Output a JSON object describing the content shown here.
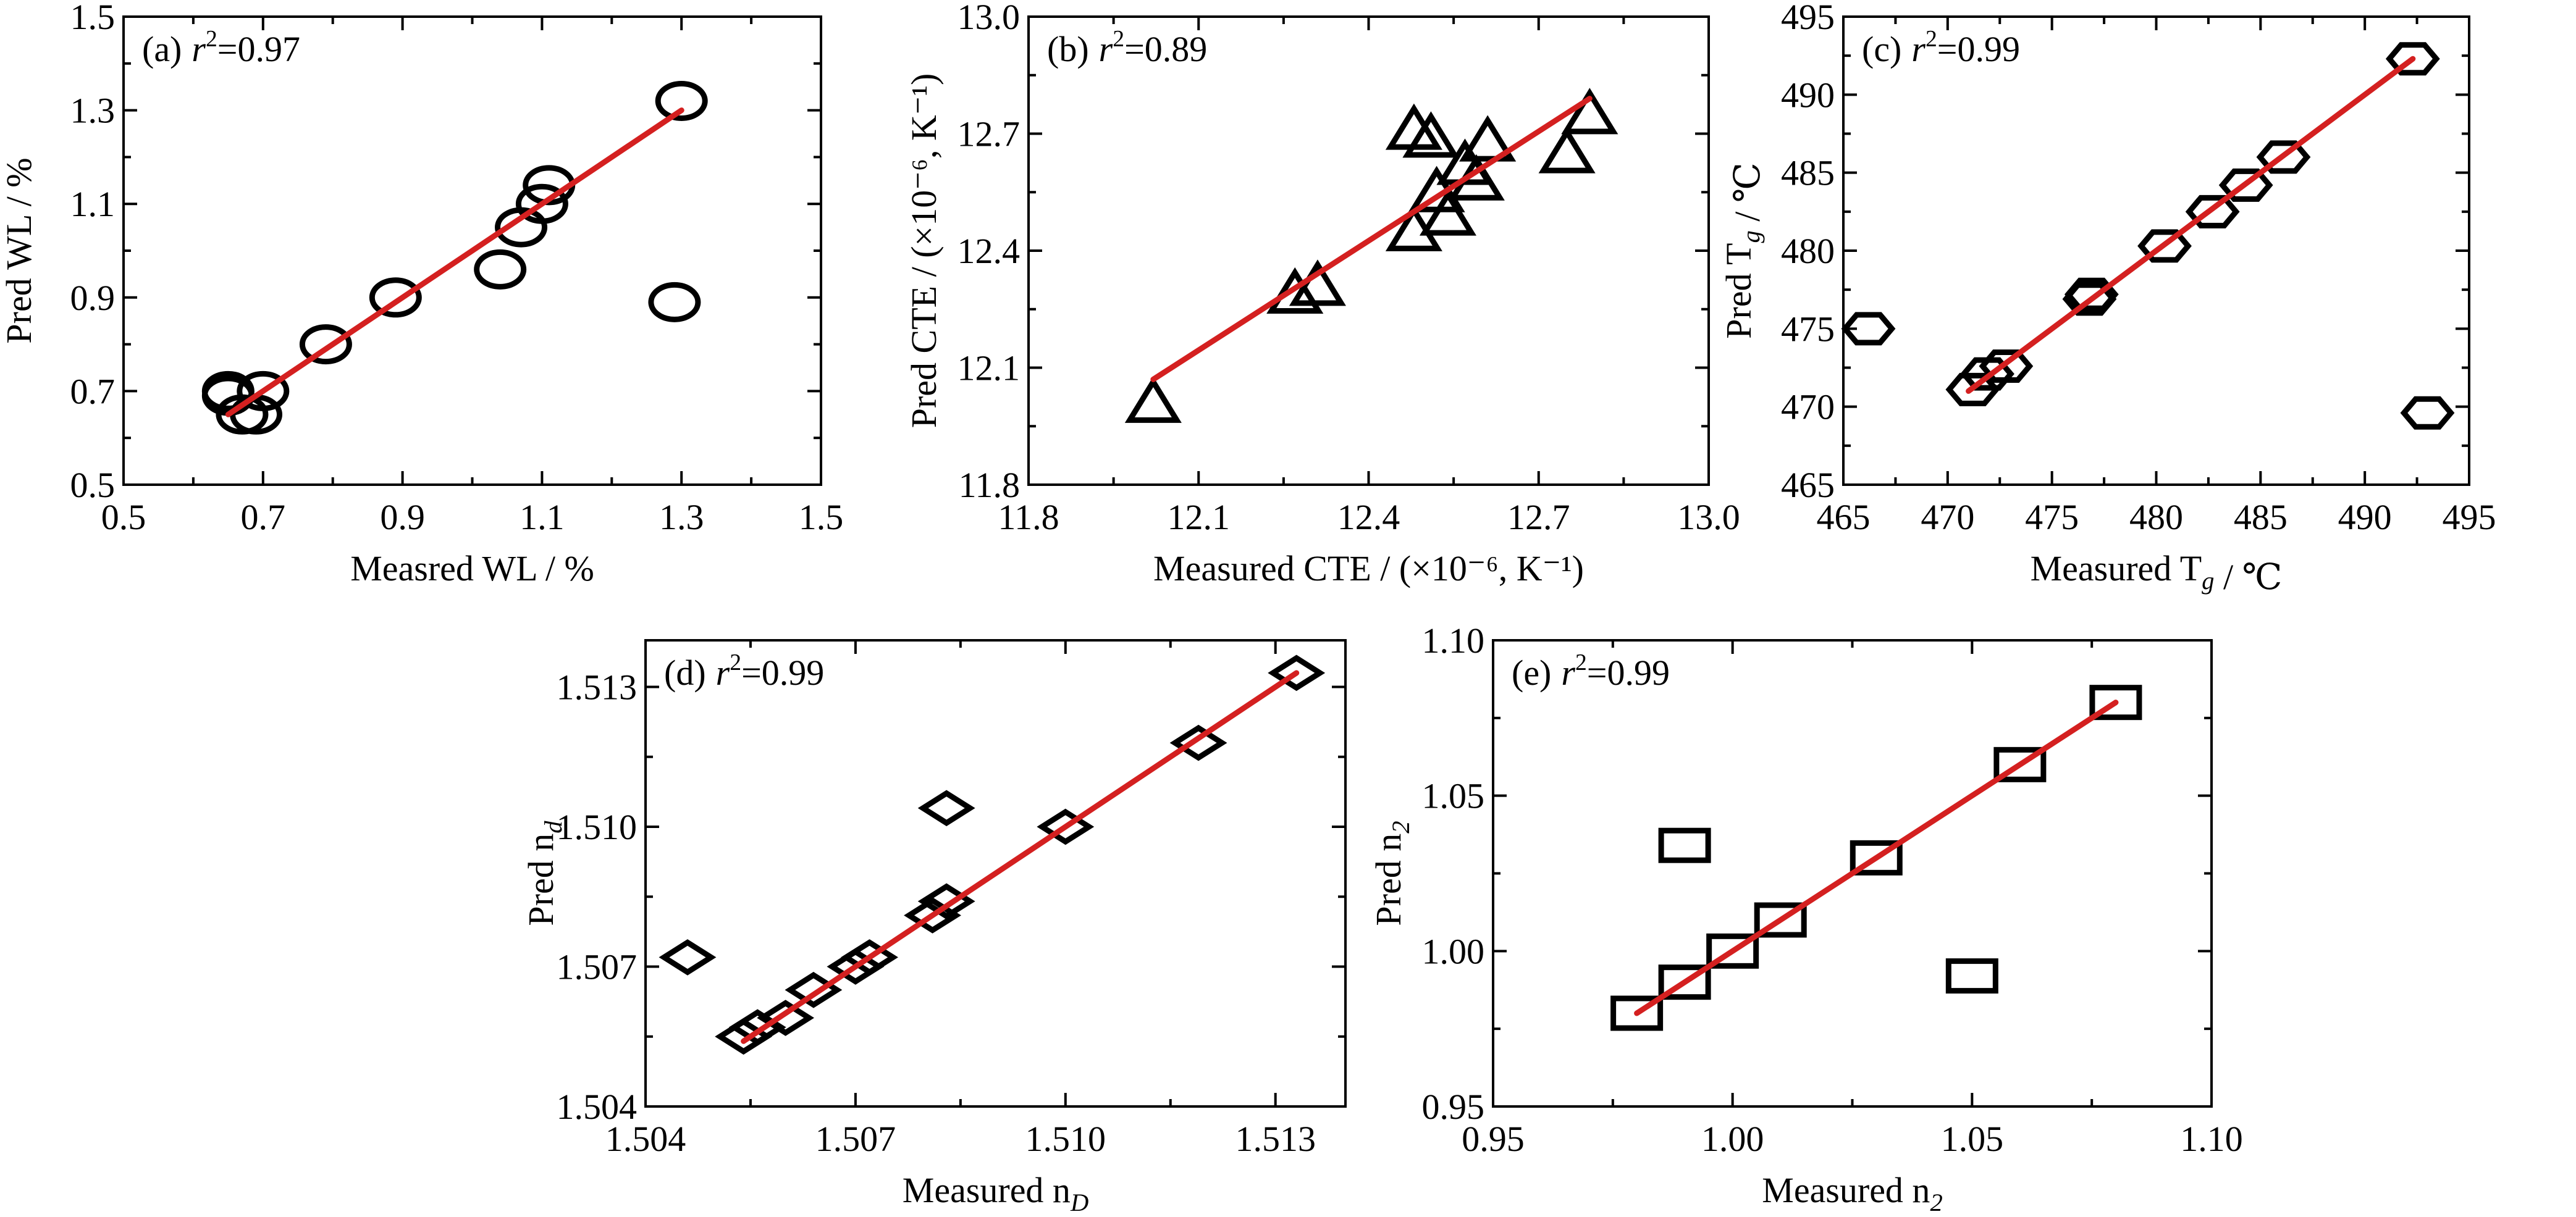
{
  "figure": {
    "line_color": "#d42020",
    "marker_color": "#000000"
  },
  "chart_data": [
    {
      "id": "a",
      "type": "scatter",
      "marker": "circle",
      "panel_label": "(a)",
      "r2_value": "=0.97",
      "xlabel": "Measred WL / %",
      "ylabel": "Pred WL / %",
      "xlim": [
        0.5,
        1.5
      ],
      "ylim": [
        0.5,
        1.5
      ],
      "xticks": [
        0.5,
        0.7,
        0.9,
        1.1,
        1.3,
        1.5
      ],
      "yticks": [
        0.5,
        0.7,
        0.9,
        1.1,
        1.3,
        1.5
      ],
      "xtick_labels": [
        "0.5",
        "0.7",
        "0.9",
        "1.1",
        "1.3",
        "1.5"
      ],
      "ytick_labels": [
        "0.5",
        "0.7",
        "0.9",
        "1.1",
        "1.3",
        "1.5"
      ],
      "minor_ticks": true,
      "grid": false,
      "points": [
        {
          "x": 0.65,
          "y": 0.69
        },
        {
          "x": 0.65,
          "y": 0.7
        },
        {
          "x": 0.67,
          "y": 0.65
        },
        {
          "x": 0.69,
          "y": 0.65
        },
        {
          "x": 0.7,
          "y": 0.7
        },
        {
          "x": 0.79,
          "y": 0.8
        },
        {
          "x": 0.89,
          "y": 0.9
        },
        {
          "x": 1.04,
          "y": 0.96
        },
        {
          "x": 1.07,
          "y": 1.05
        },
        {
          "x": 1.1,
          "y": 1.1
        },
        {
          "x": 1.11,
          "y": 1.14
        },
        {
          "x": 1.3,
          "y": 1.32
        },
        {
          "x": 1.29,
          "y": 0.89
        }
      ],
      "fit_line": {
        "x": [
          0.65,
          1.3
        ],
        "y": [
          0.65,
          1.3
        ]
      }
    },
    {
      "id": "b",
      "type": "scatter",
      "marker": "triangle",
      "panel_label": "(b)",
      "r2_value": "=0.89",
      "xlabel": "Measured CTE / (×10⁻⁶, K⁻¹)",
      "ylabel": "Pred CTE / (×10⁻⁶, K⁻¹)",
      "xlim": [
        11.8,
        13.0
      ],
      "ylim": [
        11.8,
        13.0
      ],
      "xticks": [
        11.8,
        12.1,
        12.4,
        12.7,
        13.0
      ],
      "yticks": [
        11.8,
        12.1,
        12.4,
        12.7,
        13.0
      ],
      "xtick_labels": [
        "11.8",
        "12.1",
        "12.4",
        "12.7",
        "13.0"
      ],
      "ytick_labels": [
        "11.8",
        "12.1",
        "12.4",
        "12.7",
        "13.0"
      ],
      "minor_ticks": true,
      "grid": false,
      "points": [
        {
          "x": 12.02,
          "y": 12.01
        },
        {
          "x": 12.27,
          "y": 12.29
        },
        {
          "x": 12.31,
          "y": 12.31
        },
        {
          "x": 12.48,
          "y": 12.45
        },
        {
          "x": 12.48,
          "y": 12.71
        },
        {
          "x": 12.51,
          "y": 12.69
        },
        {
          "x": 12.52,
          "y": 12.55
        },
        {
          "x": 12.54,
          "y": 12.49
        },
        {
          "x": 12.57,
          "y": 12.62
        },
        {
          "x": 12.59,
          "y": 12.58
        },
        {
          "x": 12.61,
          "y": 12.68
        },
        {
          "x": 12.75,
          "y": 12.65
        },
        {
          "x": 12.79,
          "y": 12.75
        }
      ],
      "fit_line": {
        "x": [
          12.02,
          12.79
        ],
        "y": [
          12.07,
          12.79
        ]
      }
    },
    {
      "id": "c",
      "type": "scatter",
      "marker": "hexagon",
      "panel_label": "(c)",
      "r2_value": "=0.99",
      "xlabel": "Measured T_g / ℃",
      "ylabel": "Pred T_g / ℃",
      "xlim": [
        465,
        495
      ],
      "ylim": [
        465,
        495
      ],
      "xticks": [
        465,
        470,
        475,
        480,
        485,
        490,
        495
      ],
      "yticks": [
        465,
        470,
        475,
        480,
        485,
        490,
        495
      ],
      "xtick_labels": [
        "465",
        "470",
        "475",
        "480",
        "485",
        "490",
        "495"
      ],
      "ytick_labels": [
        "465",
        "470",
        "475",
        "480",
        "485",
        "490",
        "495"
      ],
      "minor_ticks": true,
      "grid": false,
      "points": [
        {
          "x": 466.2,
          "y": 475.0
        },
        {
          "x": 471.2,
          "y": 471.1
        },
        {
          "x": 471.9,
          "y": 472.1
        },
        {
          "x": 472.8,
          "y": 472.6
        },
        {
          "x": 476.8,
          "y": 476.9
        },
        {
          "x": 476.9,
          "y": 477.2
        },
        {
          "x": 480.4,
          "y": 480.3
        },
        {
          "x": 482.7,
          "y": 482.5
        },
        {
          "x": 484.3,
          "y": 484.2
        },
        {
          "x": 486.1,
          "y": 486.0
        },
        {
          "x": 492.3,
          "y": 492.3
        },
        {
          "x": 493.0,
          "y": 469.6
        }
      ],
      "fit_line": {
        "x": [
          471.0,
          492.3
        ],
        "y": [
          471.0,
          492.3
        ]
      }
    },
    {
      "id": "d",
      "type": "scatter",
      "marker": "diamond",
      "panel_label": "(d)",
      "r2_value": "=0.99",
      "xlabel": "Measured n_D",
      "ylabel": "Pred n_d",
      "xlim": [
        1.504,
        1.514
      ],
      "ylim": [
        1.504,
        1.514
      ],
      "xticks": [
        1.504,
        1.507,
        1.51,
        1.513
      ],
      "yticks": [
        1.504,
        1.507,
        1.51,
        1.513
      ],
      "xtick_labels": [
        "1.504",
        "1.507",
        "1.510",
        "1.513"
      ],
      "ytick_labels": [
        "1.504",
        "1.507",
        "1.510",
        "1.513"
      ],
      "minor_ticks": true,
      "grid": false,
      "points": [
        {
          "x": 1.5046,
          "y": 1.5072
        },
        {
          "x": 1.5054,
          "y": 1.5055
        },
        {
          "x": 1.5056,
          "y": 1.5057
        },
        {
          "x": 1.506,
          "y": 1.5059
        },
        {
          "x": 1.5064,
          "y": 1.5065
        },
        {
          "x": 1.507,
          "y": 1.507
        },
        {
          "x": 1.5072,
          "y": 1.5072
        },
        {
          "x": 1.5081,
          "y": 1.5081
        },
        {
          "x": 1.5083,
          "y": 1.5084
        },
        {
          "x": 1.5083,
          "y": 1.5104
        },
        {
          "x": 1.51,
          "y": 1.51
        },
        {
          "x": 1.5119,
          "y": 1.5118
        },
        {
          "x": 1.5133,
          "y": 1.5133
        }
      ],
      "fit_line": {
        "x": [
          1.5054,
          1.5133
        ],
        "y": [
          1.5054,
          1.5133
        ]
      }
    },
    {
      "id": "e",
      "type": "scatter",
      "marker": "square",
      "panel_label": "(e)",
      "r2_value": "=0.99",
      "xlabel": "Measured n_2",
      "ylabel": "Pred n_2",
      "xlim": [
        0.95,
        1.1
      ],
      "ylim": [
        0.95,
        1.1
      ],
      "xticks": [
        0.95,
        1.0,
        1.05,
        1.1
      ],
      "yticks": [
        0.95,
        1.0,
        1.05,
        1.1
      ],
      "xtick_labels": [
        "0.95",
        "1.00",
        "1.05",
        "1.10"
      ],
      "ytick_labels": [
        "0.95",
        "1.00",
        "1.05",
        "1.10"
      ],
      "minor_ticks": true,
      "grid": false,
      "points": [
        {
          "x": 0.98,
          "y": 0.98
        },
        {
          "x": 0.99,
          "y": 0.99
        },
        {
          "x": 0.99,
          "y": 1.034
        },
        {
          "x": 1.0,
          "y": 1.0
        },
        {
          "x": 1.01,
          "y": 1.01
        },
        {
          "x": 1.03,
          "y": 1.03
        },
        {
          "x": 1.05,
          "y": 0.992
        },
        {
          "x": 1.06,
          "y": 1.06
        },
        {
          "x": 1.08,
          "y": 1.08
        }
      ],
      "fit_line": {
        "x": [
          0.98,
          1.08
        ],
        "y": [
          0.98,
          1.08
        ]
      }
    }
  ]
}
